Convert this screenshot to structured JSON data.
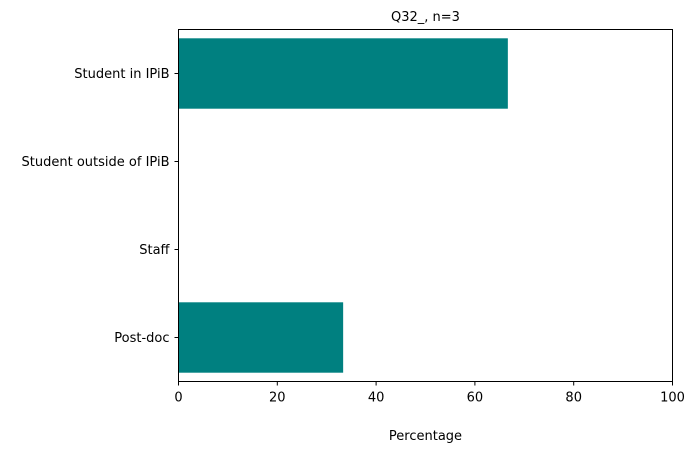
{
  "chart_data": {
    "type": "bar",
    "orientation": "horizontal",
    "title": "Q32_, n=3",
    "xlabel": "Percentage",
    "ylabel": "",
    "categories": [
      "Student in IPiB",
      "Student outside of IPiB",
      "Staff",
      "Post-doc"
    ],
    "values": [
      66.67,
      0,
      0,
      33.33
    ],
    "xlim": [
      0,
      100
    ],
    "xticks": [
      0,
      20,
      40,
      60,
      80,
      100
    ],
    "grid": false,
    "legend": "none",
    "bar_color": "#008080"
  }
}
